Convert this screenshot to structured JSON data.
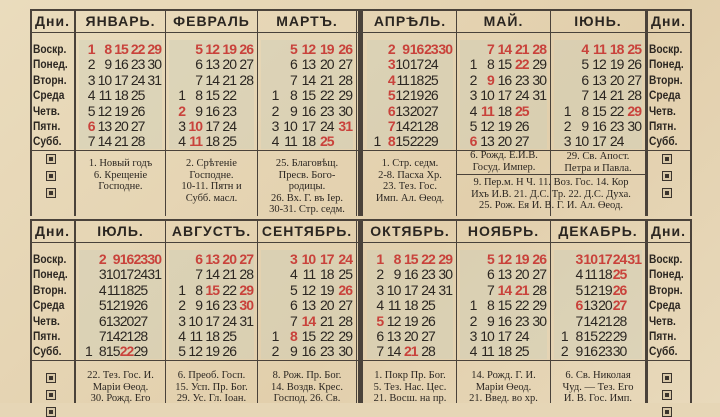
{
  "day_header": "Дни.",
  "days": [
    "Воскр.",
    "Понед.",
    "Вторн.",
    "Среда",
    "Четв.",
    "Пятн.",
    "Субб."
  ],
  "colors": {
    "paper": "#e6d6b6",
    "ink": "#2b2621",
    "red": "#c9423b"
  },
  "months": [
    {
      "name": "ЯНВАРЬ.",
      "weeks": [
        [
          "1",
          "2",
          "3",
          "4",
          "5",
          "6",
          "7"
        ],
        [
          "8",
          "9",
          "10",
          "11",
          "12",
          "13",
          "14"
        ],
        [
          "15",
          "16",
          "17",
          "18",
          "19",
          "20",
          "21"
        ],
        [
          "22",
          "23",
          "24",
          "25",
          "26",
          "27",
          "28"
        ],
        [
          "29",
          "30",
          "31",
          "",
          "",
          "",
          ""
        ]
      ],
      "red": [
        "1",
        "8",
        "15",
        "22",
        "29",
        "6"
      ],
      "notes": "1. Новый годъ\n6. Крещеніе\nГосподне."
    },
    {
      "name": "ФЕВРАЛЬ",
      "weeks": [
        [
          "",
          "",
          "",
          "1",
          "2",
          "3",
          "4"
        ],
        [
          "5",
          "6",
          "7",
          "8",
          "9",
          "10",
          "11"
        ],
        [
          "12",
          "13",
          "14",
          "15",
          "16",
          "17",
          "18"
        ],
        [
          "19",
          "20",
          "21",
          "22",
          "23",
          "24",
          "25"
        ],
        [
          "26",
          "27",
          "28",
          "",
          "",
          "",
          ""
        ]
      ],
      "red": [
        "5",
        "12",
        "19",
        "26",
        "2",
        "10",
        "11"
      ],
      "notes": "2. Срѣтеніе\nГосподне.\n10-11. Пятн и\nСубб. масл."
    },
    {
      "name": "МАРТЪ.",
      "weeks": [
        [
          "",
          "",
          "",
          "1",
          "2",
          "3",
          "4"
        ],
        [
          "5",
          "6",
          "7",
          "8",
          "9",
          "10",
          "11"
        ],
        [
          "12",
          "13",
          "14",
          "15",
          "16",
          "17",
          "18"
        ],
        [
          "19",
          "20",
          "21",
          "22",
          "23",
          "24",
          "25"
        ],
        [
          "26",
          "27",
          "28",
          "29",
          "30",
          "31",
          ""
        ]
      ],
      "red": [
        "5",
        "12",
        "19",
        "26",
        "31",
        "25"
      ],
      "notes": "25. Благовѣщ.\nПресв. Бого-\nродицы.\n26. Вх. Г. въ Iер.\n30-31. Стр. седм."
    },
    {
      "name": "АПРѢЛЬ.",
      "weeks": [
        [
          "",
          "",
          "",
          "",
          "",
          "",
          "1"
        ],
        [
          "2",
          "3",
          "4",
          "5",
          "6",
          "7",
          "8"
        ],
        [
          "9",
          "10",
          "11",
          "12",
          "13",
          "14",
          "15"
        ],
        [
          "16",
          "17",
          "18",
          "19",
          "20",
          "21",
          "22"
        ],
        [
          "23",
          "24",
          "25",
          "26",
          "27",
          "28",
          "29"
        ],
        [
          "30",
          "",
          "",
          "",
          "",
          "",
          ""
        ]
      ],
      "red": [
        "2",
        "9",
        "16",
        "23",
        "30",
        "3",
        "4",
        "5",
        "6",
        "7",
        "8"
      ],
      "notes": "1. Стр. седм.\n2-8. Пасха Хр.\n23. Тез. Гос.\nИмп. Ал. Өеод."
    },
    {
      "name": "МАЙ.",
      "weeks": [
        [
          "",
          "1",
          "2",
          "3",
          "4",
          "5",
          "6"
        ],
        [
          "7",
          "8",
          "9",
          "10",
          "11",
          "12",
          "13"
        ],
        [
          "14",
          "15",
          "16",
          "17",
          "18",
          "19",
          "20"
        ],
        [
          "21",
          "22",
          "23",
          "24",
          "25",
          "26",
          "27"
        ],
        [
          "28",
          "29",
          "30",
          "31",
          "",
          "",
          ""
        ]
      ],
      "red": [
        "7",
        "14",
        "21",
        "28",
        "22",
        "9",
        "11",
        "25",
        "6"
      ],
      "notes": "6. Рожд. Е.И.В.\nГосуд. Импер."
    },
    {
      "name": "IЮНЬ.",
      "weeks": [
        [
          "",
          "",
          "",
          "",
          "1",
          "2",
          "3"
        ],
        [
          "4",
          "5",
          "6",
          "7",
          "8",
          "9",
          "10"
        ],
        [
          "11",
          "12",
          "13",
          "14",
          "15",
          "16",
          "17"
        ],
        [
          "18",
          "19",
          "20",
          "21",
          "22",
          "23",
          "24"
        ],
        [
          "25",
          "26",
          "27",
          "28",
          "29",
          "30",
          ""
        ]
      ],
      "red": [
        "4",
        "11",
        "18",
        "25",
        "29"
      ],
      "notes": "29. Св. Апост.\nПетра и Павла."
    },
    {
      "name": "IЮЛЬ.",
      "weeks": [
        [
          "",
          "",
          "",
          "",
          "",
          "",
          "1"
        ],
        [
          "2",
          "3",
          "4",
          "5",
          "6",
          "7",
          "8"
        ],
        [
          "9",
          "10",
          "11",
          "12",
          "13",
          "14",
          "15"
        ],
        [
          "16",
          "17",
          "18",
          "19",
          "20",
          "21",
          "22"
        ],
        [
          "23",
          "24",
          "25",
          "26",
          "27",
          "28",
          "29"
        ],
        [
          "30",
          "31",
          "",
          "",
          "",
          "",
          ""
        ]
      ],
      "red": [
        "2",
        "9",
        "16",
        "23",
        "30",
        "22"
      ],
      "notes": "22. Тез. Гос. И.\nМарiи Өеод.\n30. Рожд. Его"
    },
    {
      "name": "АВГУСТЪ.",
      "weeks": [
        [
          "",
          "",
          "1",
          "2",
          "3",
          "4",
          "5"
        ],
        [
          "6",
          "7",
          "8",
          "9",
          "10",
          "11",
          "12"
        ],
        [
          "13",
          "14",
          "15",
          "16",
          "17",
          "18",
          "19"
        ],
        [
          "20",
          "21",
          "22",
          "23",
          "24",
          "25",
          "26"
        ],
        [
          "27",
          "28",
          "29",
          "30",
          "31",
          "",
          ""
        ]
      ],
      "red": [
        "6",
        "13",
        "20",
        "27",
        "15",
        "29",
        "30"
      ],
      "notes": "6. Преоб. Госп.\n15. Усп. Пр. Бог.\n29. Ус. Гл. Iоан."
    },
    {
      "name": "СЕНТЯБРЬ.",
      "weeks": [
        [
          "",
          "",
          "",
          "",
          "",
          "1",
          "2"
        ],
        [
          "3",
          "4",
          "5",
          "6",
          "7",
          "8",
          "9"
        ],
        [
          "10",
          "11",
          "12",
          "13",
          "14",
          "15",
          "16"
        ],
        [
          "17",
          "18",
          "19",
          "20",
          "21",
          "22",
          "23"
        ],
        [
          "24",
          "25",
          "26",
          "27",
          "28",
          "29",
          "30"
        ]
      ],
      "red": [
        "3",
        "10",
        "17",
        "24",
        "26",
        "14",
        "8"
      ],
      "notes": "8. Рож. Пр. Бог.\n14. Воздв. Крес.\nГоспод. 26. Св."
    },
    {
      "name": "ОКТЯБРЬ.",
      "weeks": [
        [
          "1",
          "2",
          "3",
          "4",
          "5",
          "6",
          "7"
        ],
        [
          "8",
          "9",
          "10",
          "11",
          "12",
          "13",
          "14"
        ],
        [
          "15",
          "16",
          "17",
          "18",
          "19",
          "20",
          "21"
        ],
        [
          "22",
          "23",
          "24",
          "25",
          "26",
          "27",
          "28"
        ],
        [
          "29",
          "30",
          "31",
          "",
          "",
          "",
          ""
        ]
      ],
      "red": [
        "1",
        "8",
        "15",
        "22",
        "29",
        "5",
        "21"
      ],
      "notes": "1. Покр Пр. Бог.\n5. Тез. Нас. Цес.\n21. Восш. на пр."
    },
    {
      "name": "НОЯБРЬ.",
      "weeks": [
        [
          "",
          "",
          "",
          "1",
          "2",
          "3",
          "4"
        ],
        [
          "5",
          "6",
          "7",
          "8",
          "9",
          "10",
          "11"
        ],
        [
          "12",
          "13",
          "14",
          "15",
          "16",
          "17",
          "18"
        ],
        [
          "19",
          "20",
          "21",
          "22",
          "23",
          "24",
          "25"
        ],
        [
          "26",
          "27",
          "28",
          "29",
          "30",
          "",
          ""
        ]
      ],
      "red": [
        "5",
        "12",
        "19",
        "26",
        "14",
        "21"
      ],
      "notes": "14. Рожд. Г. И.\nМарiи Өеод.\n21. Введ. во хр."
    },
    {
      "name": "ДЕКАБРЬ.",
      "weeks": [
        [
          "",
          "",
          "",
          "",
          "",
          "1",
          "2"
        ],
        [
          "3",
          "4",
          "5",
          "6",
          "7",
          "8",
          "9"
        ],
        [
          "10",
          "11",
          "12",
          "13",
          "14",
          "15",
          "16"
        ],
        [
          "17",
          "18",
          "19",
          "20",
          "21",
          "22",
          "23"
        ],
        [
          "24",
          "25",
          "26",
          "27",
          "28",
          "29",
          "30"
        ],
        [
          "31",
          "",
          "",
          "",
          "",
          "",
          ""
        ]
      ],
      "red": [
        "3",
        "10",
        "17",
        "24",
        "31",
        "25",
        "26",
        "27",
        "6"
      ],
      "notes": "6. Св. Николая\nЧуд. — Тез. Его\nИ. В. Гос. Имп."
    }
  ],
  "may_june_notes": "9. Пер.м. Н Ч. 11. Воз. Гос. 14. Кор\nИхъ И.В. 21. Д.С. Тр. 22. Д.С. Духа.\n25. Рож. Ея И. В. Г. И. Ал. Өеод."
}
